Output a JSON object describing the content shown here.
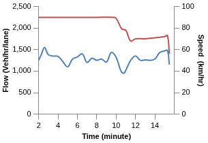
{
  "chart_data": {
    "type": "line",
    "x_label": "Time (minute)",
    "y_label": "Flow (Veh/hr/lane)",
    "y2_label": "Speed  (km/hr)",
    "xlim": [
      2,
      16
    ],
    "xticks": [
      2,
      4,
      6,
      8,
      10,
      12,
      14
    ],
    "ylim": [
      0,
      2500
    ],
    "yticks": [
      0,
      500,
      1000,
      1500,
      2000,
      2500
    ],
    "y2lim": [
      0,
      100
    ],
    "y2ticks": [
      0,
      20,
      40,
      60,
      80,
      100
    ],
    "grid": false,
    "series": [
      {
        "name": "Flow",
        "color": "#4f81bd",
        "axis": "y",
        "x": [
          2,
          2.3,
          2.6,
          3,
          3.5,
          4,
          4.5,
          5,
          5.5,
          6,
          6.5,
          7,
          7.5,
          8,
          8.5,
          9,
          9.5,
          10,
          10.5,
          10.8,
          11,
          11.5,
          12,
          12.5,
          13,
          13.5,
          14,
          14.5,
          15,
          15.3,
          15.5
        ],
        "values": [
          1250,
          1400,
          1550,
          1380,
          1350,
          1340,
          1220,
          1100,
          1280,
          1330,
          1400,
          1200,
          1300,
          1250,
          1280,
          1210,
          1430,
          1320,
          1000,
          950,
          1020,
          1250,
          1350,
          1250,
          1260,
          1250,
          1280,
          1430,
          1470,
          1480,
          1150
        ]
      },
      {
        "name": "Speed",
        "color": "#c0504d",
        "axis": "y2",
        "x": [
          2,
          4,
          6,
          8,
          9.8,
          10,
          10.3,
          10.6,
          11,
          11.5,
          12,
          13,
          14,
          15,
          15.3,
          15.5
        ],
        "values": [
          90,
          90,
          90,
          90,
          90,
          89,
          84,
          79,
          78,
          68,
          70,
          70,
          71,
          72,
          73,
          56
        ]
      }
    ]
  }
}
